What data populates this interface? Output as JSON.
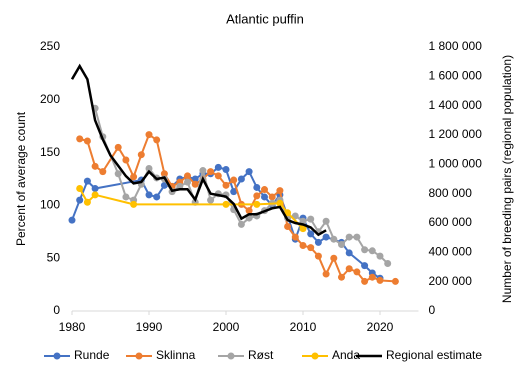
{
  "chart_data": {
    "type": "line",
    "title": "Atlantic puffin",
    "y_label": "Percent of average count",
    "y2_label": "Number of breeding pairs (regional population)",
    "xlim": [
      1980,
      2025
    ],
    "xticks": [
      1980,
      1990,
      2000,
      2010,
      2020
    ],
    "ylim": [
      0,
      250
    ],
    "yticks": [
      0,
      50,
      100,
      150,
      200,
      250
    ],
    "y2lim": [
      0,
      1800000
    ],
    "y2ticks": [
      0,
      {
        "value": 200000,
        "label": "200 000"
      },
      {
        "value": 400000,
        "label": "400 000"
      },
      {
        "value": 600000,
        "label": "600 000"
      },
      {
        "value": 800000,
        "label": "800 000"
      },
      {
        "value": 1000000,
        "label": "1 000 000"
      },
      {
        "value": 1200000,
        "label": "1 200 000"
      },
      {
        "value": 1400000,
        "label": "1 400 000"
      },
      {
        "value": 1600000,
        "label": "1 600 000"
      },
      {
        "value": 1800000,
        "label": "1 800 000"
      }
    ],
    "legend": "bottom",
    "series": [
      {
        "name": "Runde",
        "color": "#4472c4",
        "markers": true,
        "x": [
          1980,
          1981,
          1982,
          1983,
          1989,
          1990,
          1991,
          1992,
          1993,
          1994,
          1995,
          1996,
          1997,
          1998,
          1999,
          2000,
          2001,
          2002,
          2003,
          2004,
          2005,
          2006,
          2007,
          2008,
          2009,
          2010,
          2011,
          2012,
          2013,
          2015,
          2016,
          2018,
          2019,
          2020
        ],
        "values": [
          86,
          105,
          123,
          116,
          124,
          110,
          108,
          119,
          118,
          125,
          127,
          125,
          130,
          130,
          136,
          134,
          113,
          125,
          132,
          117,
          108,
          100,
          110,
          90,
          68,
          88,
          73,
          65,
          70,
          65,
          55,
          43,
          36,
          31
        ]
      },
      {
        "name": "Sklinna",
        "color": "#ed7d31",
        "markers": true,
        "x": [
          1981,
          1982,
          1983,
          1984,
          1986,
          1987,
          1988,
          1989,
          1990,
          1991,
          1992,
          1993,
          1994,
          1995,
          1996,
          1997,
          1998,
          1999,
          2000,
          2001,
          2002,
          2003,
          2004,
          2005,
          2006,
          2007,
          2008,
          2009,
          2010,
          2011,
          2012,
          2013,
          2014,
          2015,
          2016,
          2017,
          2018,
          2019,
          2020,
          2022
        ],
        "values": [
          163,
          161,
          137,
          132,
          155,
          143,
          127,
          148,
          167,
          162,
          130,
          118,
          122,
          128,
          120,
          125,
          132,
          128,
          119,
          124,
          101,
          95,
          109,
          115,
          108,
          114,
          80,
          70,
          62,
          60,
          52,
          35,
          50,
          32,
          40,
          37,
          28,
          32,
          29,
          28
        ]
      },
      {
        "name": "Røst",
        "color": "#a5a5a5",
        "markers": true,
        "x": [
          1983,
          1984,
          1986,
          1987,
          1988,
          1989,
          1990,
          1991,
          1992,
          1993,
          1994,
          1995,
          1996,
          1997,
          1998,
          1999,
          2000,
          2001,
          2002,
          2003,
          2004,
          2005,
          2006,
          2007,
          2008,
          2009,
          2010,
          2011,
          2012,
          2013,
          2014,
          2015,
          2016,
          2017,
          2018,
          2019,
          2020,
          2021
        ],
        "values": [
          192,
          165,
          130,
          108,
          105,
          120,
          135,
          126,
          125,
          113,
          118,
          122,
          103,
          133,
          105,
          111,
          110,
          96,
          82,
          88,
          90,
          95,
          102,
          105,
          88,
          90,
          85,
          87,
          75,
          85,
          68,
          63,
          70,
          70,
          58,
          57,
          52,
          45
        ]
      },
      {
        "name": "Anda",
        "color": "#ffc000",
        "markers": true,
        "x": [
          1981,
          1982,
          1983,
          1988,
          2000,
          2004,
          2007,
          2008,
          2010
        ],
        "values": [
          116,
          103,
          110,
          101,
          101,
          101,
          102,
          93,
          78
        ]
      },
      {
        "name": "Regional estimate",
        "color": "#000000",
        "markers": false,
        "axis": "y2",
        "x": [
          1980,
          1981,
          1982,
          1983,
          1984,
          1985,
          1986,
          1987,
          1988,
          1989,
          1990,
          1991,
          1992,
          1993,
          1994,
          1995,
          1996,
          1997,
          1998,
          1999,
          2000,
          2001,
          2002,
          2003,
          2004,
          2005,
          2006,
          2007,
          2008,
          2009,
          2010,
          2011,
          2012,
          2013
        ],
        "values": [
          1580000,
          1670000,
          1580000,
          1300000,
          1170000,
          1060000,
          990000,
          920000,
          870000,
          880000,
          950000,
          900000,
          910000,
          820000,
          830000,
          830000,
          760000,
          900000,
          800000,
          790000,
          780000,
          730000,
          630000,
          660000,
          660000,
          680000,
          700000,
          710000,
          620000,
          600000,
          590000,
          570000,
          520000,
          550000
        ]
      }
    ]
  }
}
